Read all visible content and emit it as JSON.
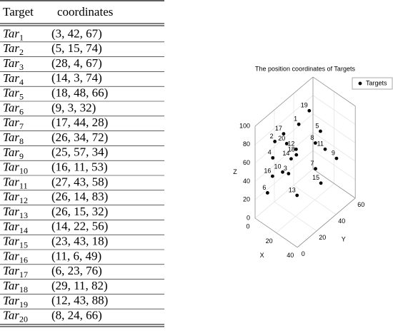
{
  "table": {
    "header": [
      "Target",
      "coordinates"
    ],
    "rows": [
      {
        "name": "Tar",
        "sub": "1",
        "coords": "(3, 42, 67)"
      },
      {
        "name": "Tar",
        "sub": "2",
        "coords": "(5, 15, 74)"
      },
      {
        "name": "Tar",
        "sub": "3",
        "coords": "(28, 4, 67)"
      },
      {
        "name": "Tar",
        "sub": "4",
        "coords": "(14, 3, 74)"
      },
      {
        "name": "Tar",
        "sub": "5",
        "coords": "(18, 48, 66)"
      },
      {
        "name": "Tar",
        "sub": "6",
        "coords": "(9, 3, 32)"
      },
      {
        "name": "Tar",
        "sub": "7",
        "coords": "(17, 44, 28)"
      },
      {
        "name": "Tar",
        "sub": "8",
        "coords": "(26, 34, 72)"
      },
      {
        "name": "Tar",
        "sub": "9",
        "coords": "(25, 57, 34)"
      },
      {
        "name": "Tar",
        "sub": "10",
        "coords": "(16, 11, 53)"
      },
      {
        "name": "Tar",
        "sub": "11",
        "coords": "(27, 43, 58)"
      },
      {
        "name": "Tar",
        "sub": "12",
        "coords": "(26, 14, 83)"
      },
      {
        "name": "Tar",
        "sub": "13",
        "coords": "(26, 15, 32)"
      },
      {
        "name": "Tar",
        "sub": "14",
        "coords": "(14, 22, 56)"
      },
      {
        "name": "Tar",
        "sub": "15",
        "coords": "(23, 43, 18)"
      },
      {
        "name": "Tar",
        "sub": "16",
        "coords": "(11, 6, 49)"
      },
      {
        "name": "Tar",
        "sub": "17",
        "coords": "(6, 23, 76)"
      },
      {
        "name": "Tar",
        "sub": "18",
        "coords": "(29, 11, 82)"
      },
      {
        "name": "Tar",
        "sub": "19",
        "coords": "(12, 43, 88)"
      },
      {
        "name": "Tar",
        "sub": "20",
        "coords": "(8, 24, 66)"
      }
    ]
  },
  "chart_data": {
    "type": "scatter3d",
    "title": "The position coordinates of Targets",
    "xlabel": "X",
    "ylabel": "Y",
    "zlabel": "Z",
    "legend": "Targets",
    "legend_loc": "upper right",
    "color": "#000000",
    "grid": true,
    "labels": [
      "1",
      "2",
      "3",
      "4",
      "5",
      "6",
      "7",
      "8",
      "9",
      "10",
      "11",
      "12",
      "13",
      "14",
      "15",
      "16",
      "17",
      "18",
      "19",
      "20"
    ],
    "x": [
      3,
      5,
      28,
      14,
      18,
      9,
      17,
      26,
      25,
      16,
      27,
      26,
      26,
      14,
      23,
      11,
      6,
      29,
      12,
      8
    ],
    "y": [
      42,
      15,
      4,
      3,
      48,
      3,
      44,
      34,
      57,
      11,
      43,
      14,
      15,
      22,
      43,
      6,
      23,
      11,
      43,
      24
    ],
    "z": [
      67,
      74,
      67,
      74,
      66,
      32,
      28,
      72,
      34,
      53,
      58,
      83,
      32,
      56,
      18,
      49,
      76,
      82,
      88,
      66
    ],
    "xlim": [
      0,
      40
    ],
    "ylim": [
      0,
      60
    ],
    "zlim": [
      0,
      100
    ],
    "xticks": [
      0,
      20,
      40
    ],
    "yticks": [
      0,
      20,
      40,
      60
    ],
    "zticks": [
      0,
      20,
      40,
      60,
      80,
      100
    ]
  }
}
